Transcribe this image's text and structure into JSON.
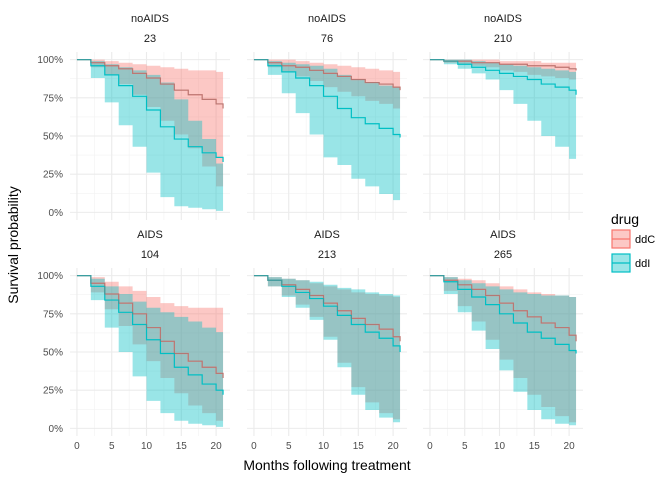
{
  "chart_data": {
    "type": "area",
    "xlabel": "Months following treatment",
    "ylabel": "Survival probability",
    "xlim": [
      -1,
      22
    ],
    "ylim": [
      -0.05,
      1.05
    ],
    "x_ticks": [
      "0",
      "5",
      "10",
      "15",
      "20"
    ],
    "x_tick_values": [
      0,
      5,
      10,
      15,
      20
    ],
    "y_ticks": [
      "0%",
      "25%",
      "50%",
      "75%",
      "100%"
    ],
    "y_tick_values": [
      0,
      0.25,
      0.5,
      0.75,
      1
    ],
    "grid": true,
    "legend": {
      "title": "drug",
      "position": "right",
      "entries": [
        {
          "label": "ddC",
          "color": "#F8766D"
        },
        {
          "label": "ddI",
          "color": "#00BFC4"
        }
      ]
    },
    "series_colors": {
      "ddC": "#F8766D",
      "ddI": "#00BFC4"
    },
    "x": [
      0,
      2,
      4,
      6,
      8,
      10,
      12,
      14,
      16,
      18,
      20,
      21
    ],
    "panels": [
      {
        "row_label": "noAIDS",
        "col_label": "23",
        "series": [
          {
            "name": "ddC",
            "values": [
              1,
              0.98,
              0.96,
              0.94,
              0.91,
              0.88,
              0.84,
              0.8,
              0.77,
              0.74,
              0.71,
              0.68
            ],
            "lower": [
              1,
              0.95,
              0.9,
              0.84,
              0.77,
              0.69,
              0.6,
              0.51,
              0.42,
              0.3,
              0.17,
              0.1
            ],
            "upper": [
              1,
              1,
              0.99,
              0.98,
              0.97,
              0.96,
              0.95,
              0.94,
              0.93,
              0.93,
              0.92,
              0.92
            ]
          },
          {
            "name": "ddI",
            "values": [
              1,
              0.96,
              0.9,
              0.83,
              0.76,
              0.67,
              0.56,
              0.48,
              0.43,
              0.39,
              0.36,
              0.33
            ],
            "lower": [
              1,
              0.88,
              0.72,
              0.57,
              0.43,
              0.26,
              0.1,
              0.04,
              0.03,
              0.02,
              0.01,
              0.01
            ],
            "upper": [
              1,
              0.99,
              0.97,
              0.95,
              0.93,
              0.9,
              0.85,
              0.74,
              0.6,
              0.48,
              0.32,
              0.25
            ]
          }
        ]
      },
      {
        "row_label": "noAIDS",
        "col_label": "76",
        "series": [
          {
            "name": "ddC",
            "values": [
              1,
              0.98,
              0.96,
              0.95,
              0.93,
              0.91,
              0.89,
              0.87,
              0.85,
              0.84,
              0.82,
              0.8
            ],
            "lower": [
              1,
              0.95,
              0.92,
              0.89,
              0.86,
              0.82,
              0.79,
              0.76,
              0.73,
              0.71,
              0.68,
              0.66
            ],
            "upper": [
              1,
              1,
              1,
              0.99,
              0.98,
              0.97,
              0.96,
              0.95,
              0.94,
              0.93,
              0.92,
              0.92
            ]
          },
          {
            "name": "ddI",
            "values": [
              1,
              0.96,
              0.92,
              0.88,
              0.83,
              0.76,
              0.68,
              0.62,
              0.58,
              0.55,
              0.51,
              0.49
            ],
            "lower": [
              1,
              0.9,
              0.78,
              0.65,
              0.51,
              0.36,
              0.31,
              0.22,
              0.17,
              0.12,
              0.08,
              0.06
            ],
            "upper": [
              1,
              0.99,
              0.98,
              0.97,
              0.96,
              0.94,
              0.9,
              0.87,
              0.85,
              0.83,
              0.82,
              0.82
            ]
          }
        ]
      },
      {
        "row_label": "noAIDS",
        "col_label": "210",
        "series": [
          {
            "name": "ddC",
            "values": [
              1,
              0.99,
              0.99,
              0.98,
              0.98,
              0.97,
              0.97,
              0.96,
              0.96,
              0.95,
              0.94,
              0.93
            ],
            "lower": [
              1,
              0.98,
              0.97,
              0.96,
              0.95,
              0.93,
              0.92,
              0.9,
              0.89,
              0.88,
              0.87,
              0.86
            ],
            "upper": [
              1,
              1,
              1,
              1,
              1,
              0.99,
              0.99,
              0.99,
              0.98,
              0.98,
              0.98,
              0.98
            ]
          },
          {
            "name": "ddI",
            "values": [
              1,
              0.99,
              0.97,
              0.95,
              0.93,
              0.91,
              0.89,
              0.87,
              0.84,
              0.82,
              0.8,
              0.77
            ],
            "lower": [
              1,
              0.97,
              0.94,
              0.91,
              0.87,
              0.8,
              0.71,
              0.6,
              0.5,
              0.43,
              0.35,
              0.2
            ],
            "upper": [
              1,
              1,
              1,
              0.99,
              0.98,
              0.97,
              0.96,
              0.95,
              0.94,
              0.93,
              0.92,
              0.91
            ]
          }
        ]
      },
      {
        "row_label": "AIDS",
        "col_label": "104",
        "series": [
          {
            "name": "ddC",
            "values": [
              1,
              0.95,
              0.88,
              0.82,
              0.75,
              0.66,
              0.57,
              0.49,
              0.44,
              0.4,
              0.36,
              0.33
            ],
            "lower": [
              1,
              0.89,
              0.78,
              0.67,
              0.55,
              0.44,
              0.33,
              0.23,
              0.15,
              0.1,
              0.05,
              0.04
            ],
            "upper": [
              1,
              0.99,
              0.96,
              0.93,
              0.9,
              0.86,
              0.82,
              0.8,
              0.79,
              0.79,
              0.79,
              0.79
            ]
          },
          {
            "name": "ddI",
            "values": [
              1,
              0.93,
              0.84,
              0.76,
              0.68,
              0.58,
              0.49,
              0.4,
              0.35,
              0.29,
              0.25,
              0.22
            ],
            "lower": [
              1,
              0.84,
              0.66,
              0.5,
              0.34,
              0.18,
              0.1,
              0.05,
              0.03,
              0.02,
              0.01,
              0.01
            ],
            "upper": [
              1,
              0.98,
              0.93,
              0.88,
              0.83,
              0.79,
              0.76,
              0.73,
              0.7,
              0.66,
              0.63,
              0.61
            ]
          }
        ]
      },
      {
        "row_label": "AIDS",
        "col_label": "213",
        "series": [
          {
            "name": "ddC",
            "values": [
              1,
              0.97,
              0.94,
              0.91,
              0.87,
              0.82,
              0.77,
              0.72,
              0.68,
              0.65,
              0.6,
              0.57
            ],
            "lower": [
              1,
              0.93,
              0.87,
              0.81,
              0.73,
              0.6,
              0.43,
              0.27,
              0.17,
              0.1,
              0.06,
              0.04
            ],
            "upper": [
              1,
              0.99,
              0.98,
              0.97,
              0.95,
              0.93,
              0.91,
              0.89,
              0.88,
              0.87,
              0.86,
              0.86
            ]
          },
          {
            "name": "ddI",
            "values": [
              1,
              0.97,
              0.93,
              0.89,
              0.85,
              0.8,
              0.74,
              0.68,
              0.63,
              0.59,
              0.54,
              0.5
            ],
            "lower": [
              1,
              0.93,
              0.86,
              0.79,
              0.71,
              0.58,
              0.4,
              0.22,
              0.12,
              0.07,
              0.04,
              0.03
            ],
            "upper": [
              1,
              0.99,
              0.98,
              0.97,
              0.96,
              0.94,
              0.92,
              0.91,
              0.89,
              0.88,
              0.87,
              0.87
            ]
          }
        ]
      },
      {
        "row_label": "AIDS",
        "col_label": "265",
        "series": [
          {
            "name": "ddC",
            "values": [
              1,
              0.97,
              0.94,
              0.91,
              0.87,
              0.82,
              0.77,
              0.73,
              0.69,
              0.66,
              0.61,
              0.57
            ],
            "lower": [
              1,
              0.9,
              0.8,
              0.7,
              0.58,
              0.45,
              0.33,
              0.22,
              0.14,
              0.08,
              0.04,
              0.03
            ],
            "upper": [
              1,
              0.99,
              0.98,
              0.97,
              0.95,
              0.93,
              0.91,
              0.89,
              0.88,
              0.87,
              0.86,
              0.86
            ]
          },
          {
            "name": "ddI",
            "values": [
              1,
              0.96,
              0.91,
              0.86,
              0.81,
              0.75,
              0.69,
              0.63,
              0.59,
              0.55,
              0.51,
              0.49
            ],
            "lower": [
              1,
              0.88,
              0.76,
              0.64,
              0.52,
              0.38,
              0.24,
              0.12,
              0.06,
              0.03,
              0.02,
              0.01
            ],
            "upper": [
              1,
              0.99,
              0.97,
              0.95,
              0.93,
              0.91,
              0.89,
              0.88,
              0.87,
              0.87,
              0.86,
              0.86
            ]
          }
        ]
      }
    ]
  }
}
